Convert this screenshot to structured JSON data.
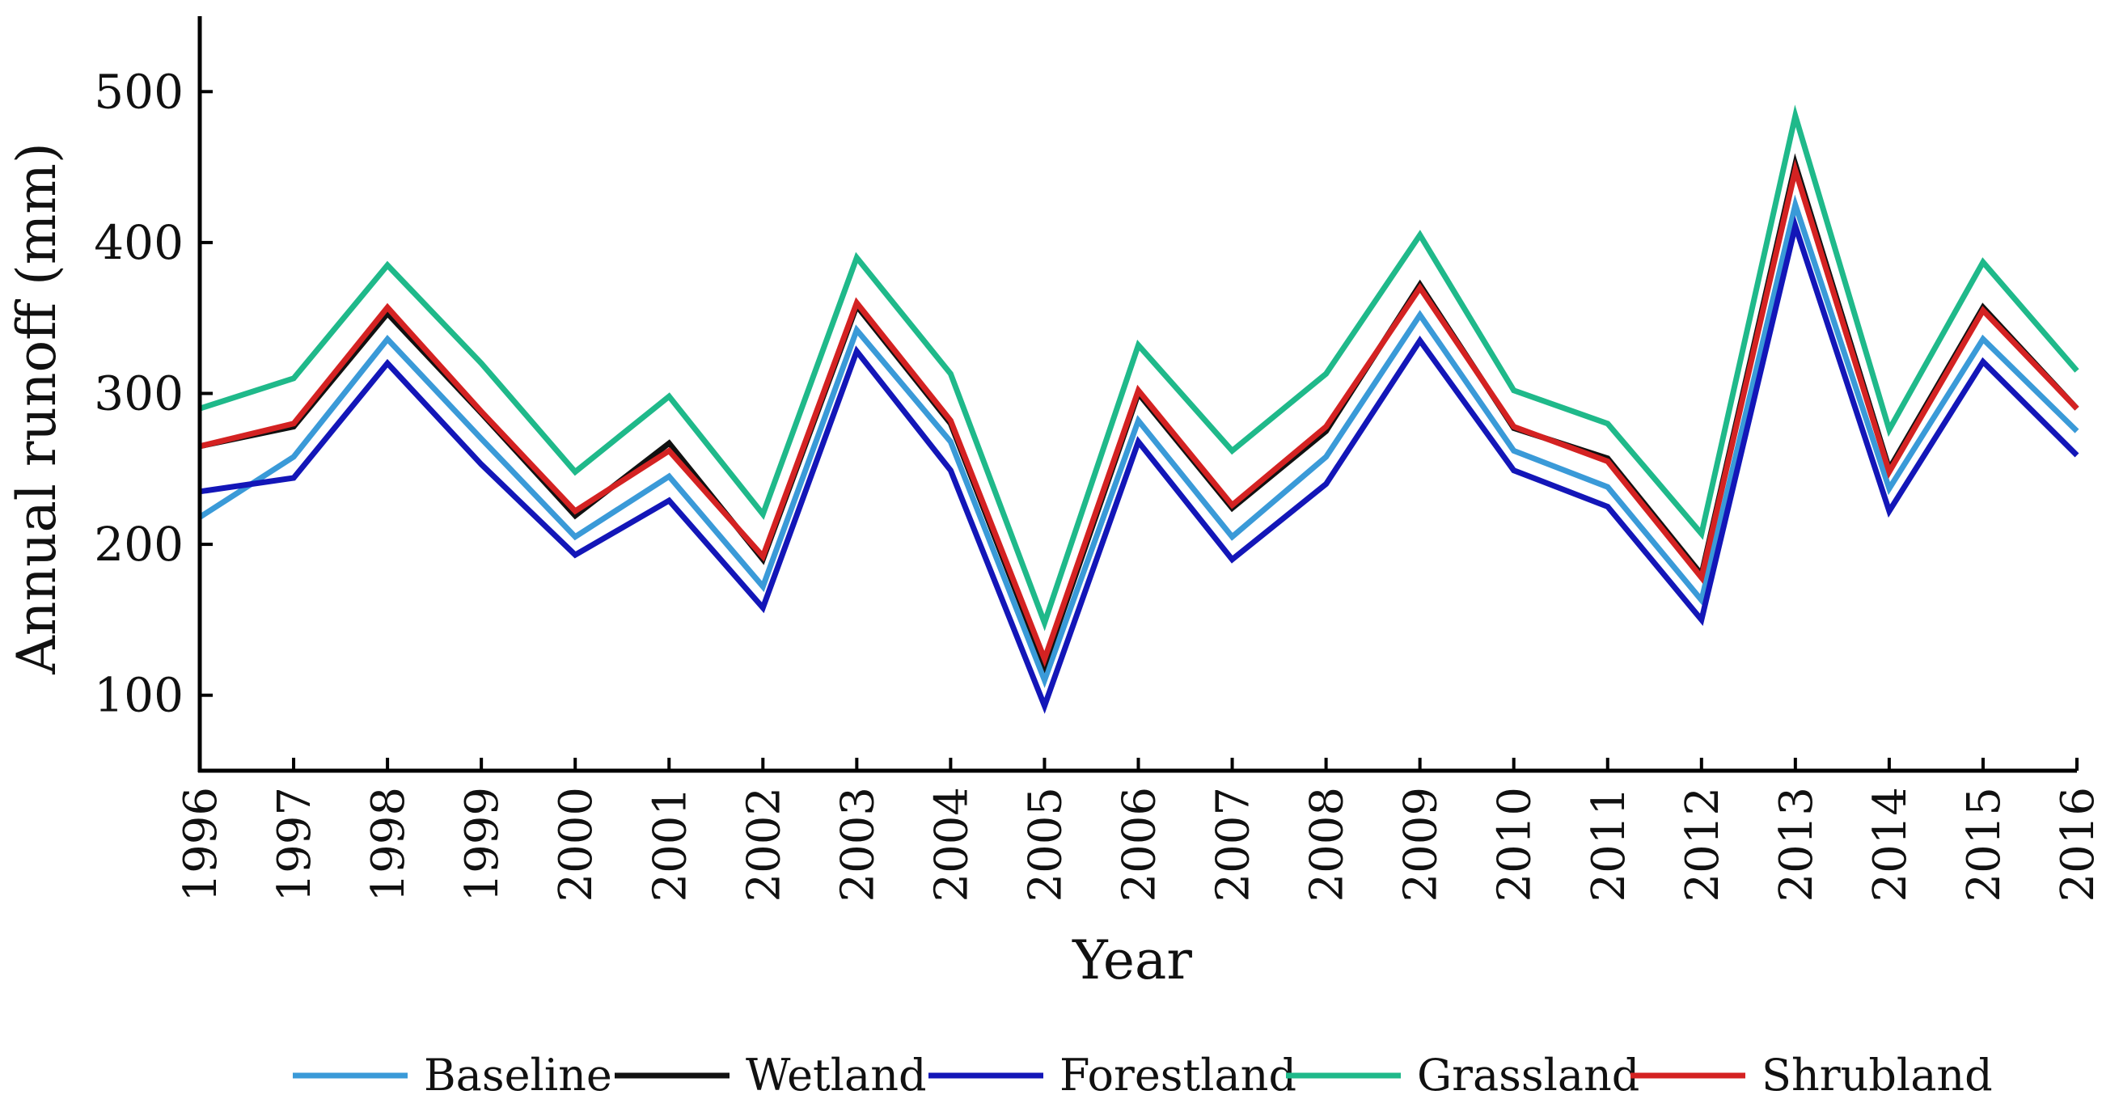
{
  "chart_data": {
    "type": "line",
    "title": "",
    "xlabel": "Year",
    "ylabel": "Annual runoff (mm)",
    "categories": [
      "1996",
      "1997",
      "1998",
      "1999",
      "2000",
      "2001",
      "2002",
      "2003",
      "2004",
      "2005",
      "2006",
      "2007",
      "2008",
      "2009",
      "2010",
      "2011",
      "2012",
      "2013",
      "2014",
      "2015",
      "2016"
    ],
    "yticks": [
      100,
      200,
      300,
      400,
      500
    ],
    "ylim": [
      50,
      550
    ],
    "legend_position": "bottom",
    "series": [
      {
        "name": "Grassland",
        "color": "#1fb98a",
        "values": [
          290,
          310,
          385,
          320,
          248,
          298,
          220,
          390,
          313,
          148,
          332,
          262,
          313,
          405,
          302,
          280,
          207,
          484,
          276,
          387,
          315
        ]
      },
      {
        "name": "Baseline",
        "color": "#3a9ad8",
        "values": [
          218,
          258,
          336,
          270,
          205,
          245,
          172,
          342,
          268,
          110,
          282,
          205,
          258,
          352,
          262,
          238,
          163,
          425,
          237,
          336,
          275
        ]
      },
      {
        "name": "Forestland",
        "color": "#1316b8",
        "values": [
          235,
          244,
          320,
          253,
          193,
          229,
          158,
          328,
          249,
          93,
          268,
          190,
          240,
          335,
          249,
          225,
          150,
          411,
          222,
          321,
          259
        ]
      },
      {
        "name": "Wetland",
        "color": "#111111",
        "values": [
          265,
          278,
          353,
          287,
          219,
          267,
          190,
          358,
          280,
          120,
          300,
          224,
          275,
          372,
          277,
          257,
          180,
          452,
          250,
          357,
          290
        ]
      },
      {
        "name": "Shrubland",
        "color": "#d42222",
        "values": [
          265,
          280,
          357,
          288,
          222,
          262,
          192,
          360,
          282,
          124,
          302,
          226,
          278,
          370,
          278,
          255,
          178,
          448,
          248,
          355,
          290
        ]
      }
    ],
    "legend_order": [
      "Baseline",
      "Wetland",
      "Forestland",
      "Grassland",
      "Shrubland"
    ]
  }
}
